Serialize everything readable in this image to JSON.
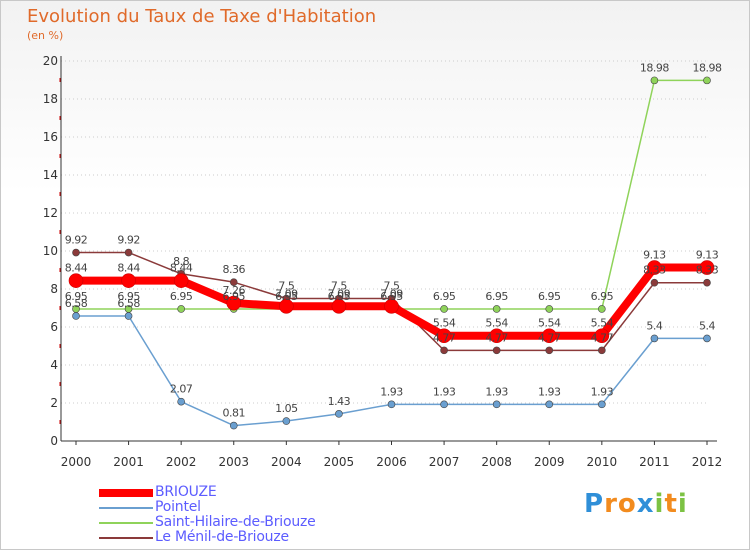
{
  "chart_data": {
    "type": "line",
    "title": "Evolution du Taux de Taxe d'Habitation",
    "subtitle": "(en %)",
    "x": [
      "2000",
      "2001",
      "2002",
      "2003",
      "2004",
      "2005",
      "2006",
      "2007",
      "2008",
      "2009",
      "2010",
      "2011",
      "2012"
    ],
    "ylim": [
      0,
      20
    ],
    "yticks": [
      "0",
      "2",
      "4",
      "6",
      "8",
      "10",
      "12",
      "14",
      "16",
      "18",
      "20"
    ],
    "grid": "horizontal-dotted",
    "legend_position": "bottom-left",
    "series": [
      {
        "name": "BRIOUZE",
        "color": "#ff0000",
        "values": [
          8.44,
          8.44,
          8.44,
          7.26,
          7.09,
          7.09,
          7.09,
          5.54,
          5.54,
          5.54,
          5.54,
          9.13,
          9.13
        ],
        "labels": [
          "8.44",
          "8.44",
          "8.44",
          "7.26",
          "7.09",
          "7.09",
          "7.09",
          "5.54",
          "5.54",
          "5.54",
          "5.54",
          "9.13",
          "9.13"
        ]
      },
      {
        "name": "Pointel",
        "color": "#6a9fd0",
        "values": [
          6.58,
          6.58,
          2.07,
          0.81,
          1.05,
          1.43,
          1.93,
          1.93,
          1.93,
          1.93,
          1.93,
          5.4,
          5.4
        ],
        "labels": [
          "6.58",
          "6.58",
          "2.07",
          "0.81",
          "1.05",
          "1.43",
          "1.93",
          "1.93",
          "1.93",
          "1.93",
          "1.93",
          "5.4",
          "5.4"
        ]
      },
      {
        "name": "Saint-Hilaire-de-Briouze",
        "color": "#8fd35a",
        "values": [
          6.95,
          6.95,
          6.95,
          6.95,
          6.95,
          6.95,
          6.95,
          6.95,
          6.95,
          6.95,
          6.95,
          18.98,
          18.98
        ],
        "labels": [
          "6.95",
          "6.95",
          "6.95",
          "6.95",
          "6.95",
          "6.95",
          "6.95",
          "6.95",
          "6.95",
          "6.95",
          "6.95",
          "18.98",
          "18.98"
        ]
      },
      {
        "name": "Le Ménil-de-Briouze",
        "color": "#8b3a3a",
        "values": [
          9.92,
          9.92,
          8.8,
          8.36,
          7.5,
          7.5,
          7.5,
          4.77,
          4.77,
          4.77,
          4.77,
          8.33,
          8.33
        ],
        "labels": [
          "9.92",
          "9.92",
          "8.8",
          "8.36",
          "7.5",
          "7.5",
          "7.5",
          "4.77",
          "4.77",
          "4.77",
          "4.77",
          "8.33",
          "8.33"
        ]
      }
    ]
  },
  "logo": {
    "letters": [
      "P",
      "r",
      "o",
      "x",
      "i",
      "t",
      "i"
    ],
    "colors": [
      "#2f8fd8",
      "#f28b1e",
      "#f28b1e",
      "#2f8fd8",
      "#7cc243",
      "#f28b1e",
      "#7cc243"
    ]
  }
}
